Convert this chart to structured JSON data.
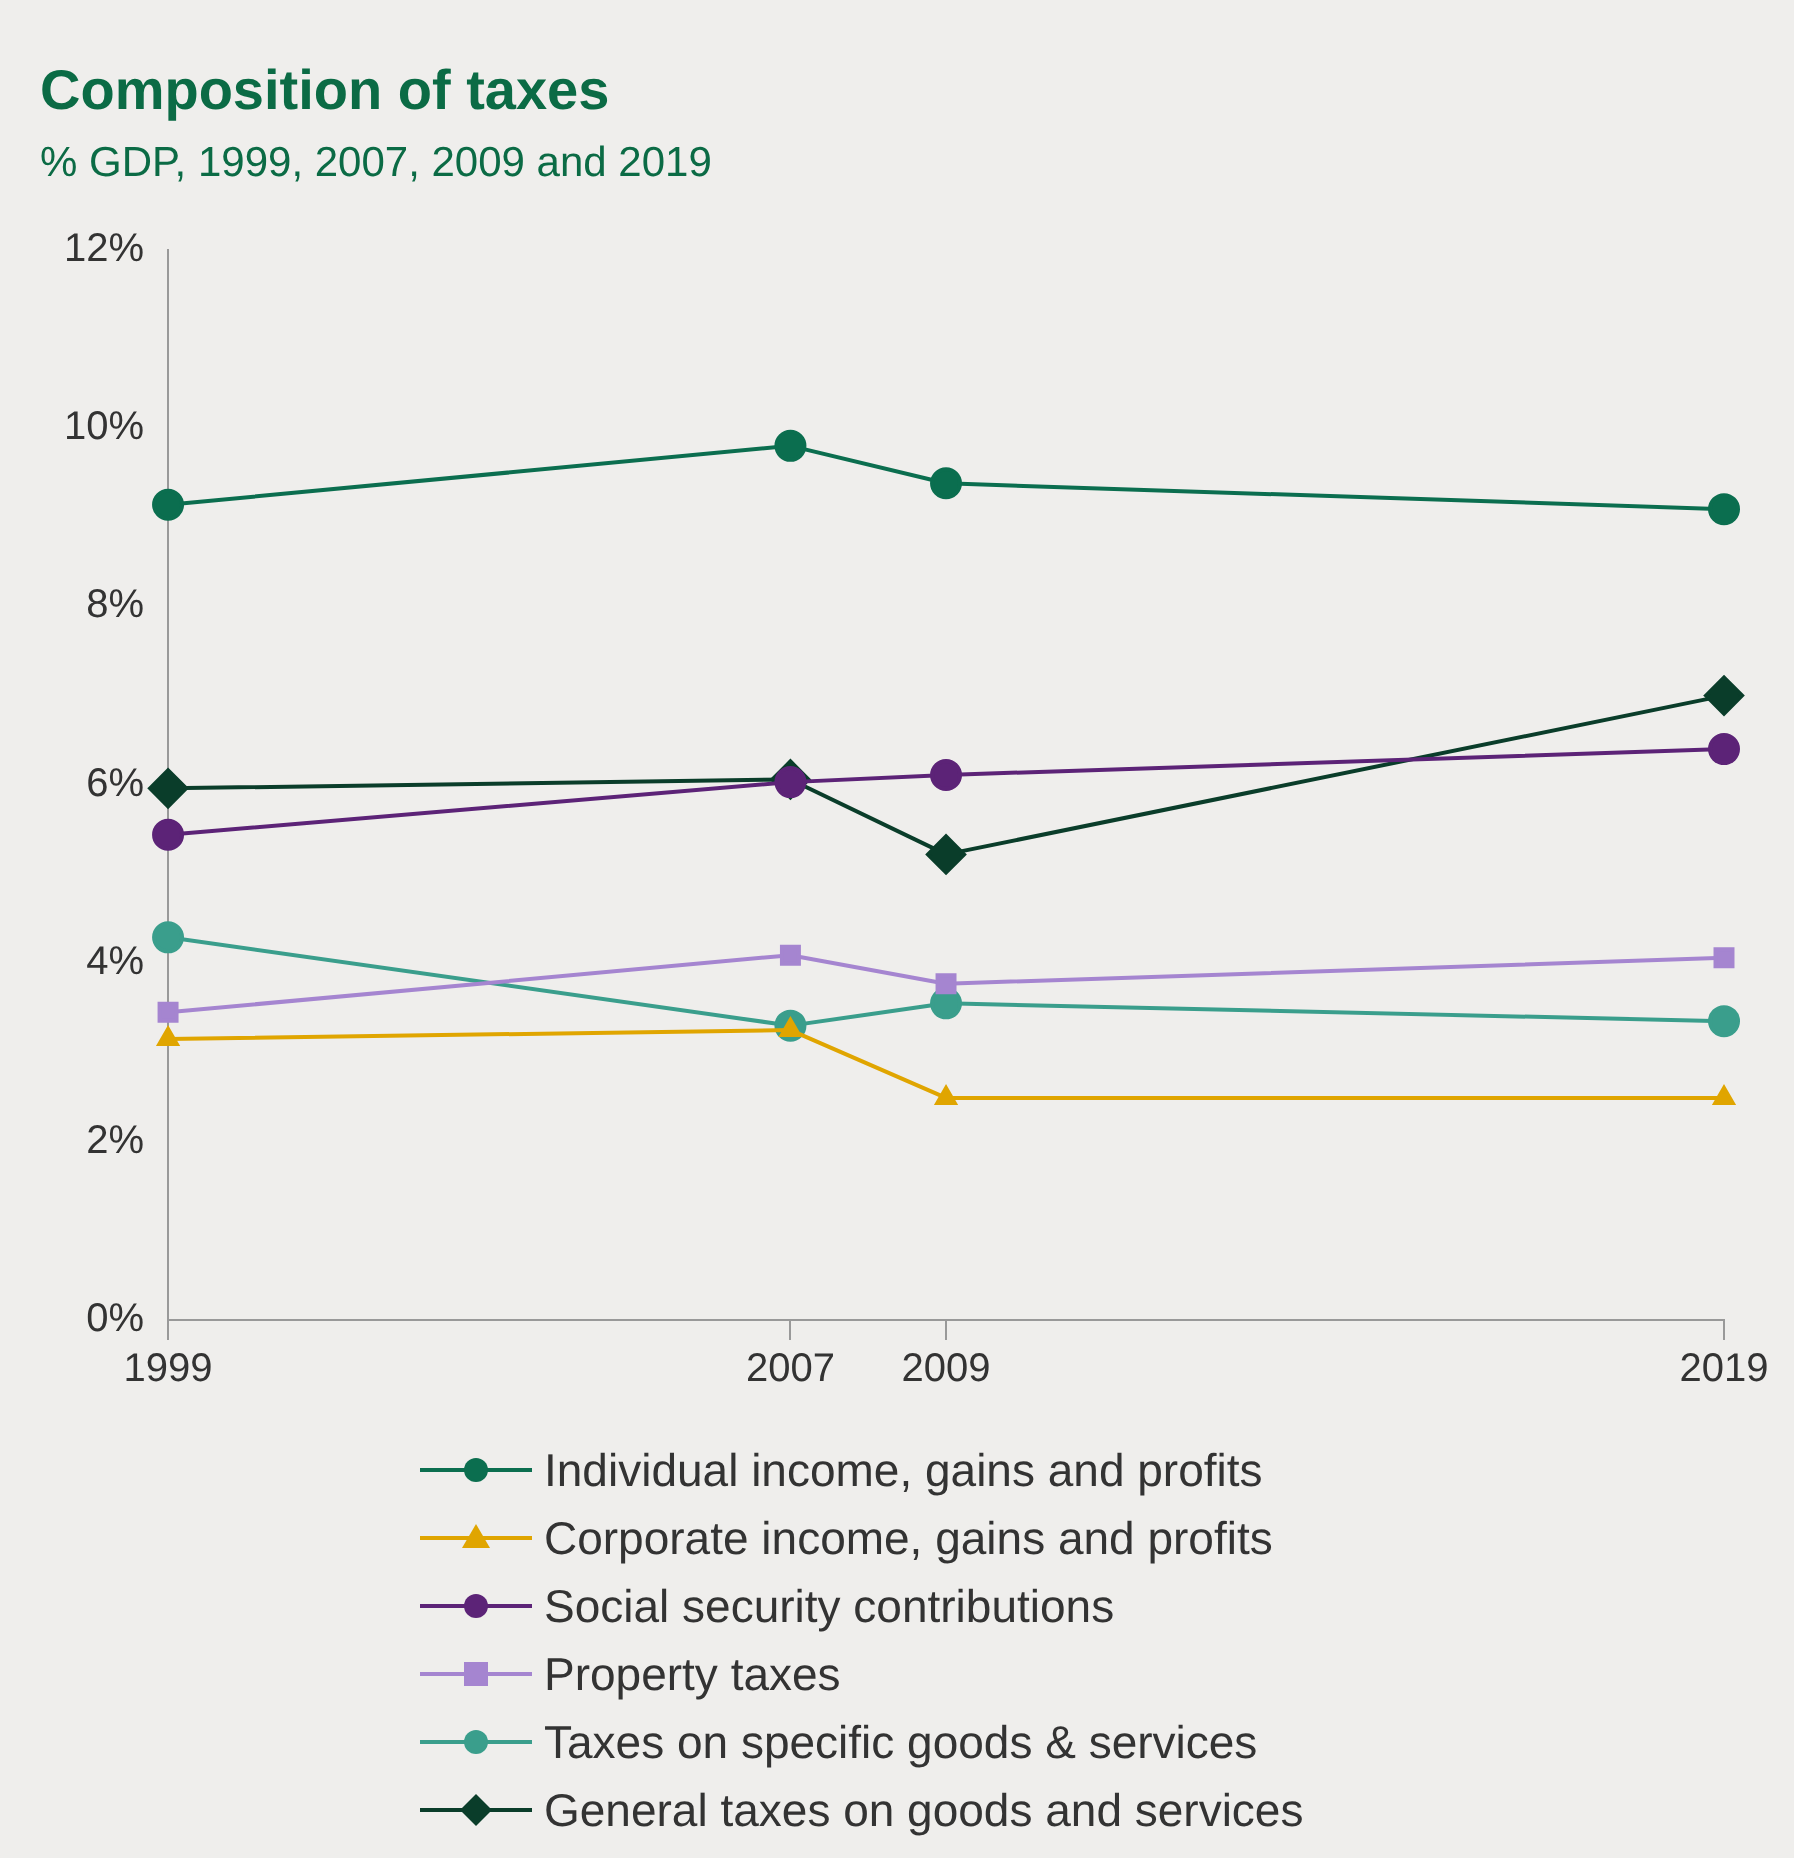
{
  "chart_data": {
    "type": "line",
    "title": "Composition of taxes",
    "subtitle": "% GDP, 1999, 2007, 2009 and 2019",
    "x": [
      1999,
      2007,
      2009,
      2019
    ],
    "xlim": [
      1999,
      2019
    ],
    "xticks": [
      1999,
      2007,
      2009,
      2019
    ],
    "ylim": [
      0,
      12
    ],
    "yticks": [
      {
        "value": 0,
        "label": "0%"
      },
      {
        "value": 2,
        "label": "2%"
      },
      {
        "value": 4,
        "label": "4%"
      },
      {
        "value": 6,
        "label": "6%"
      },
      {
        "value": 8,
        "label": "8%"
      },
      {
        "value": 10,
        "label": "10%"
      },
      {
        "value": 12,
        "label": "12%"
      }
    ],
    "grid": false,
    "legend": "bottom",
    "series": [
      {
        "name": "Individual income, gains and profits",
        "color": "#0b6e4f",
        "marker": "circle",
        "values": [
          9.14,
          9.8,
          9.38,
          9.09
        ]
      },
      {
        "name": "Corporate income, gains and profits",
        "color": "#e0a500",
        "marker": "triangle",
        "values": [
          3.15,
          3.25,
          2.49,
          2.49
        ]
      },
      {
        "name": "Social security contributions",
        "color": "#5c2377",
        "marker": "circle",
        "values": [
          5.44,
          6.03,
          6.11,
          6.4
        ]
      },
      {
        "name": "Property taxes",
        "color": "#a585d0",
        "marker": "square",
        "values": [
          3.45,
          4.09,
          3.77,
          4.06
        ]
      },
      {
        "name": "Taxes on specific goods & services",
        "color": "#3a9e8c",
        "marker": "circle",
        "values": [
          4.29,
          3.3,
          3.55,
          3.35
        ]
      },
      {
        "name": "General taxes on goods and services",
        "color": "#0a3d2a",
        "marker": "diamond",
        "values": [
          5.96,
          6.06,
          5.22,
          7.0
        ]
      }
    ]
  }
}
